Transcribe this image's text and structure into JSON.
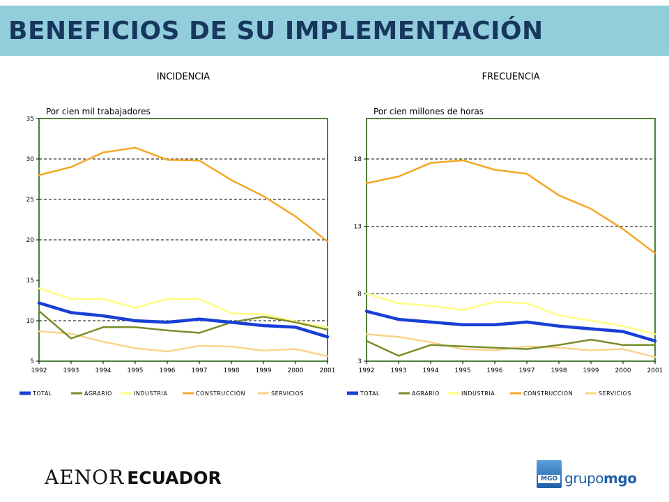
{
  "header": {
    "title": "BENEFICIOS DE SU IMPLEMENTACIÓN"
  },
  "footer": {
    "aenor_part1": "AENOR",
    "aenor_part2": "ECUADOR",
    "mgo_badge": "MGO",
    "mgo_word1": "grupo",
    "mgo_word2": "mgo"
  },
  "colors": {
    "TOTAL": "#1a3fd6",
    "AGRARIO": "#7a8c2a",
    "INDUSTRIA": "#ffff80",
    "CONSTRUCCIÓN": "#f5a623",
    "SERVICIOS": "#f9d38a",
    "frame": "#4f7f3a"
  },
  "chart_data": [
    {
      "type": "line",
      "title": "INCIDENCIA",
      "subtitle": "Por cien mil trabajadores",
      "x": [
        "1992",
        "1993",
        "1994",
        "1995",
        "1996",
        "1997",
        "1998",
        "1999",
        "2000",
        "2001"
      ],
      "ylim": [
        5,
        35
      ],
      "yticks": [
        5,
        10,
        15,
        20,
        25,
        30,
        35
      ],
      "gridlines": [
        10,
        20,
        25,
        30
      ],
      "legend_position": "bottom",
      "series": [
        {
          "name": "TOTAL",
          "values": [
            12.2,
            11.0,
            10.6,
            10.0,
            9.8,
            10.2,
            9.8,
            9.4,
            9.2,
            8.0
          ]
        },
        {
          "name": "AGRARIO",
          "values": [
            11.2,
            7.8,
            9.2,
            9.2,
            8.8,
            8.5,
            9.8,
            10.5,
            9.8,
            8.9
          ]
        },
        {
          "name": "INDUSTRIA",
          "values": [
            14.0,
            12.7,
            12.7,
            11.6,
            12.7,
            12.7,
            10.9,
            10.8,
            9.9,
            9.2
          ]
        },
        {
          "name": "CONSTRUCCIÓN",
          "values": [
            28.0,
            29.0,
            30.8,
            31.4,
            29.9,
            29.8,
            27.4,
            25.4,
            22.9,
            19.8
          ]
        },
        {
          "name": "SERVICIOS",
          "values": [
            8.7,
            8.4,
            7.4,
            6.6,
            6.2,
            6.9,
            6.8,
            6.3,
            6.5,
            5.6
          ]
        }
      ]
    },
    {
      "type": "line",
      "title": "FRECUENCIA",
      "subtitle": "Por cien millones de horas",
      "x": [
        "1992",
        "1993",
        "1994",
        "1995",
        "1996",
        "1997",
        "1998",
        "1999",
        "2000",
        "2001"
      ],
      "ylim": [
        3,
        21
      ],
      "yticks": [
        3,
        8,
        13,
        18
      ],
      "gridlines": [
        8,
        13,
        18
      ],
      "legend_position": "bottom",
      "series": [
        {
          "name": "TOTAL",
          "values": [
            6.7,
            6.1,
            5.9,
            5.7,
            5.7,
            5.9,
            5.6,
            5.4,
            5.2,
            4.5
          ]
        },
        {
          "name": "AGRARIO",
          "values": [
            4.5,
            3.4,
            4.2,
            4.1,
            4.0,
            3.9,
            4.2,
            4.6,
            4.2,
            4.2
          ]
        },
        {
          "name": "INDUSTRIA",
          "values": [
            8.0,
            7.3,
            7.1,
            6.8,
            7.4,
            7.3,
            6.4,
            6.0,
            5.6,
            5.0
          ]
        },
        {
          "name": "CONSTRUCCIÓN",
          "values": [
            16.2,
            16.7,
            17.7,
            17.9,
            17.2,
            16.9,
            15.3,
            14.3,
            12.8,
            11.0
          ]
        },
        {
          "name": "SERVICIOS",
          "values": [
            5.0,
            4.8,
            4.4,
            3.9,
            3.8,
            4.1,
            4.0,
            3.8,
            3.9,
            3.3
          ]
        }
      ]
    }
  ]
}
